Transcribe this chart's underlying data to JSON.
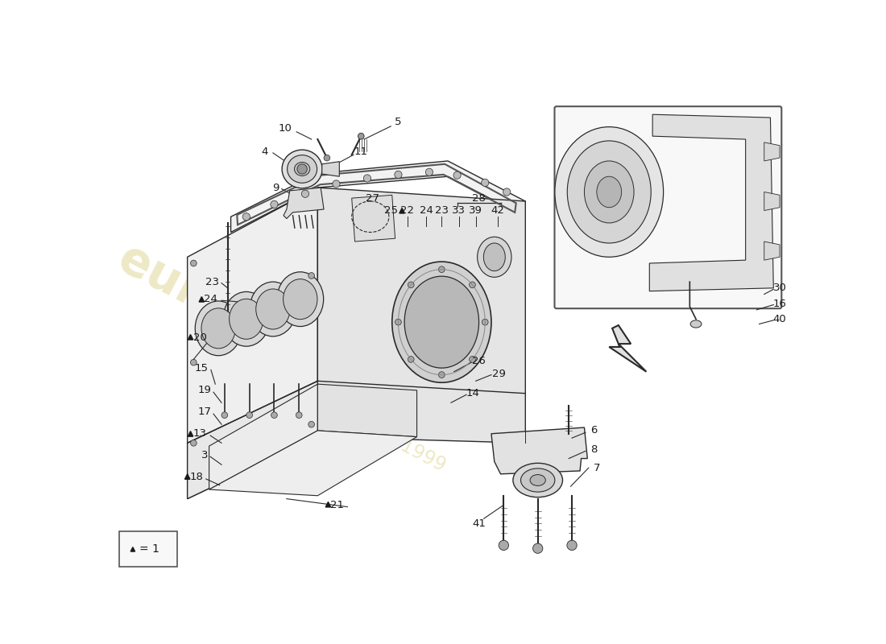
{
  "bg_color": "#ffffff",
  "fig_width": 11.0,
  "fig_height": 8.0,
  "wm_color1": "#d4c870",
  "wm_color2": "#c8b840",
  "wm_alpha": 0.4,
  "label_fs": 9.5,
  "label_color": "#1a1a1a",
  "line_color": "#2a2a2a",
  "lw_main": 1.0,
  "lw_thin": 0.7
}
